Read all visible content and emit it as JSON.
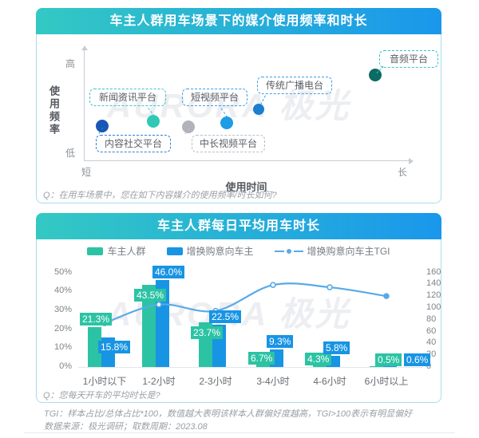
{
  "watermark": "AURORA 极光",
  "theme": {
    "header_gradient": [
      "#33c9c3",
      "#1a97ec"
    ],
    "owner_green": "#2cc3a4",
    "intender_blue": "#1894e4",
    "tgi_line_blue": "#58aae6"
  },
  "panel1": {
    "title": "车主人群用车场景下的媒介使用频率和时长",
    "y_axis_title": "使用频率",
    "y_high": "高",
    "y_low": "低",
    "x_axis_title": "使用时间",
    "x_short": "短",
    "x_long": "长",
    "question": "Q：在用车场景中，您在如下内容媒介的使用频率/时长如何?"
  },
  "panel2": {
    "title": "车主人群每日平均用车时长",
    "question": "Q：您每天开车的平均时长是?"
  },
  "footer": {
    "tgi_note": "TGI：样本占比/总体占比*100，数值越大表明该样本人群偏好度越高，TGI>100表示有明显偏好",
    "source": "数据来源：极光调研；取数周期：2023.08"
  },
  "chart_data": [
    {
      "type": "scatter",
      "title": "车主人群用车场景下的媒介使用频率和时长",
      "xlabel": "使用时间",
      "ylabel": "使用频率",
      "x_range_labels": [
        "短",
        "长"
      ],
      "y_range_labels": [
        "低",
        "高"
      ],
      "points": [
        {
          "label": "内容社交平台",
          "usage_time": 5.7,
          "usage_frequency": 32.0,
          "dot_color": "#1757b5",
          "box_color": "#2e7fd6"
        },
        {
          "label": "新闻资讯平台",
          "usage_time": 21.4,
          "usage_frequency": 36.5,
          "dot_color": "#2fc9b5",
          "box_color": "#3fc4cf"
        },
        {
          "label": "中长视频平台",
          "usage_time": 32.2,
          "usage_frequency": 31.3,
          "dot_color": "#b0b4ba",
          "box_color": "#b9bdc3"
        },
        {
          "label": "短视频平台",
          "usage_time": 44.0,
          "usage_frequency": 35.0,
          "dot_color": "#1e9ce6",
          "box_color": "#3e9ee6"
        },
        {
          "label": "传统广播电台",
          "usage_time": 53.8,
          "usage_frequency": 47.8,
          "dot_color": "#1a7fd0",
          "box_color": "#3e9ee6"
        },
        {
          "label": "音频平台",
          "usage_time": 89.7,
          "usage_frequency": 79.9,
          "dot_color": "#0d6a64",
          "box_color": "#35c0cc"
        }
      ]
    },
    {
      "type": "bar+line",
      "title": "车主人群每日平均用车时长",
      "categories": [
        "1小时以下",
        "1-2小时",
        "2-3小时",
        "3-4小时",
        "4-6小时",
        "6小时以上"
      ],
      "series": [
        {
          "name": "车主人群",
          "type": "bar",
          "color": "#2cc3a4",
          "values": [
            21.3,
            43.5,
            23.7,
            6.7,
            4.3,
            0.5
          ]
        },
        {
          "name": "增换购意向车主",
          "type": "bar",
          "color": "#1894e4",
          "values": [
            15.8,
            46.0,
            22.5,
            9.3,
            5.8,
            0.6
          ]
        },
        {
          "name": "增换购意向车主TGI",
          "type": "line",
          "color": "#58aae6",
          "values": [
            74.2,
            105.7,
            94.9,
            138.8,
            134.9,
            120.0
          ]
        }
      ],
      "y_left": {
        "min": 0,
        "max": 50,
        "step": 10,
        "suffix": "%"
      },
      "y_right": {
        "min": 0,
        "max": 160,
        "step": 20,
        "suffix": ""
      },
      "legend_position": "top",
      "grid": false
    }
  ]
}
